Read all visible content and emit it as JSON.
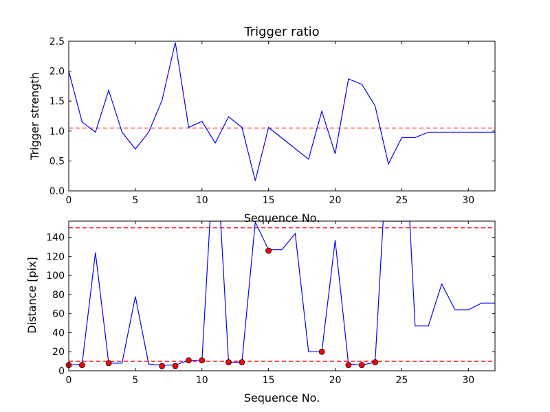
{
  "colors": {
    "line": "#0000ff",
    "threshold": "#ff0000",
    "marker": "#ff0000",
    "axes": "#000000"
  },
  "chart_data": [
    {
      "type": "line",
      "title": "Trigger ratio",
      "xlabel": "Sequence No.",
      "ylabel": "Trigger strength",
      "xlim": [
        0,
        32
      ],
      "ylim": [
        0,
        2.5
      ],
      "xticks": [
        0,
        5,
        10,
        15,
        20,
        25,
        30
      ],
      "xtick_labels": [
        "0",
        "5",
        "10",
        "15",
        "20",
        "25",
        "30"
      ],
      "yticks": [
        0.0,
        0.5,
        1.0,
        1.5,
        2.0,
        2.5
      ],
      "ytick_labels": [
        "0.0",
        "0.5",
        "1.0",
        "1.5",
        "2.0",
        "2.5"
      ],
      "grid": false,
      "series": [
        {
          "x": [
            0,
            1,
            2,
            3,
            4,
            5,
            6,
            7,
            8,
            9,
            10,
            11,
            12,
            13,
            14,
            15,
            18,
            19,
            20,
            21,
            22,
            23,
            24,
            25,
            26,
            27,
            32
          ],
          "y": [
            2.0,
            1.15,
            0.98,
            1.68,
            0.98,
            0.7,
            0.98,
            1.51,
            2.48,
            1.06,
            1.16,
            0.8,
            1.24,
            1.06,
            0.17,
            1.06,
            0.53,
            1.33,
            0.62,
            1.87,
            1.78,
            1.42,
            0.45,
            0.89,
            0.89,
            0.98,
            0.98
          ]
        }
      ],
      "hlines": [
        1.05
      ]
    },
    {
      "type": "line",
      "title": "",
      "xlabel": "Sequence No.",
      "ylabel": "Distance [pix]",
      "xlim": [
        0,
        32
      ],
      "ylim": [
        0,
        157
      ],
      "xticks": [
        0,
        5,
        10,
        15,
        20,
        25,
        30
      ],
      "xtick_labels": [
        "0",
        "5",
        "10",
        "15",
        "20",
        "25",
        "30"
      ],
      "yticks": [
        0,
        20,
        40,
        60,
        80,
        100,
        120,
        140
      ],
      "ytick_labels": [
        "0",
        "20",
        "40",
        "60",
        "80",
        "100",
        "120",
        "140"
      ],
      "grid": false,
      "series": [
        {
          "x": [
            0,
            1,
            2,
            3,
            4,
            5,
            6,
            7,
            8,
            9,
            10,
            10.6,
            11.4,
            12,
            13,
            14,
            15,
            16,
            17,
            18,
            19,
            20,
            21,
            22,
            23,
            23.6,
            25.6,
            26,
            27,
            28,
            29,
            30,
            31,
            32
          ],
          "y": [
            6,
            7,
            124,
            8,
            8,
            78,
            7,
            6,
            6,
            11,
            11,
            157,
            157,
            9,
            9,
            156,
            127,
            127,
            144,
            20,
            20,
            137,
            7,
            6,
            9,
            157,
            157,
            47,
            47,
            91,
            64,
            64,
            71,
            71
          ]
        }
      ],
      "markers": {
        "x": [
          0,
          1,
          3,
          7,
          8,
          9,
          10,
          12,
          13,
          15,
          19,
          21,
          22,
          23
        ],
        "y": [
          6,
          6,
          8,
          5,
          5,
          11,
          11,
          9,
          9,
          126,
          20,
          6,
          6,
          9
        ]
      },
      "hlines": [
        10,
        150
      ]
    }
  ]
}
